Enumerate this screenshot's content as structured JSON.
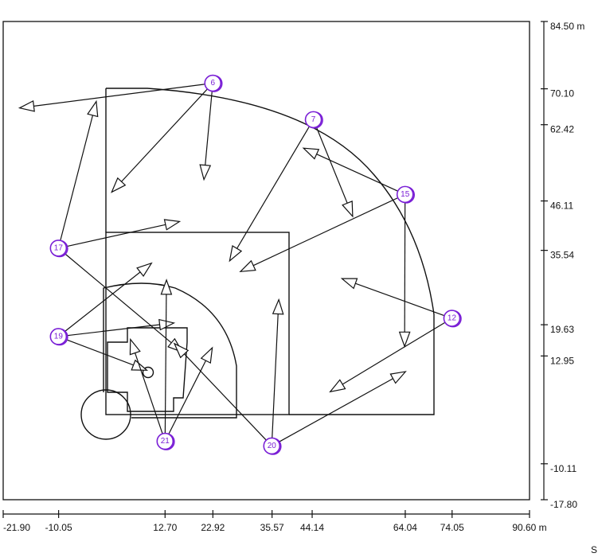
{
  "x_axis": {
    "unit": "m",
    "ticks": [
      {
        "label": "-21.90",
        "value": -21.9
      },
      {
        "label": "-10.05",
        "value": -10.05
      },
      {
        "label": "12.70",
        "value": 12.7
      },
      {
        "label": "22.92",
        "value": 22.92
      },
      {
        "label": "35.57",
        "value": 35.57
      },
      {
        "label": "44.14",
        "value": 44.14
      },
      {
        "label": "64.04",
        "value": 64.04
      },
      {
        "label": "74.05",
        "value": 74.05
      },
      {
        "label": "90.60 m",
        "value": 90.6
      }
    ]
  },
  "y_axis": {
    "unit": "m",
    "ticks": [
      {
        "label": "84.50 m",
        "value": 84.5
      },
      {
        "label": "70.10",
        "value": 70.1
      },
      {
        "label": "62.42",
        "value": 62.42
      },
      {
        "label": "46.11",
        "value": 46.11
      },
      {
        "label": "35.54",
        "value": 35.54
      },
      {
        "label": "19.63",
        "value": 19.63
      },
      {
        "label": "12.95",
        "value": 12.95
      },
      {
        "label": "-10.11",
        "value": -10.11
      },
      {
        "label": "-17.80",
        "value": -17.8
      }
    ]
  },
  "corner_label": "S",
  "players": [
    {
      "id": "6",
      "x": 22.9,
      "y": 71.3
    },
    {
      "id": "7",
      "x": 44.4,
      "y": 63.5
    },
    {
      "id": "15",
      "x": 64.0,
      "y": 47.5
    },
    {
      "id": "17",
      "x": -10.1,
      "y": 36.0
    },
    {
      "id": "19",
      "x": -10.1,
      "y": 17.1
    },
    {
      "id": "12",
      "x": 74.0,
      "y": 21.0
    },
    {
      "id": "21",
      "x": 12.7,
      "y": -5.3
    },
    {
      "id": "20",
      "x": 35.5,
      "y": -6.3
    }
  ],
  "moves": [
    {
      "from": "6",
      "to": [
        -18.4,
        66.0
      ]
    },
    {
      "from": "6",
      "to": [
        21.0,
        50.7
      ]
    },
    {
      "from": "6",
      "to": [
        1.3,
        48.0
      ]
    },
    {
      "from": "7",
      "to": [
        52.8,
        42.8
      ]
    },
    {
      "from": "7",
      "to": [
        26.5,
        33.3
      ]
    },
    {
      "from": "15",
      "to": [
        42.3,
        57.4
      ]
    },
    {
      "from": "15",
      "to": [
        28.8,
        31.0
      ]
    },
    {
      "from": "15",
      "to": [
        63.9,
        15.0
      ]
    },
    {
      "from": "17",
      "to": [
        15.8,
        41.7
      ]
    },
    {
      "from": "17",
      "to": [
        -2.0,
        67.4
      ]
    },
    {
      "from": "17",
      "to": [
        16.4,
        13.8
      ]
    },
    {
      "from": "19",
      "to": [
        9.8,
        32.8
      ]
    },
    {
      "from": "19",
      "to": [
        14.6,
        20.0
      ]
    },
    {
      "from": "19",
      "to": [
        8.8,
        9.9
      ]
    },
    {
      "from": "12",
      "to": [
        50.5,
        29.5
      ]
    },
    {
      "from": "12",
      "to": [
        48.0,
        5.3
      ]
    },
    {
      "from": "21",
      "to": [
        5.3,
        16.5
      ]
    },
    {
      "from": "21",
      "to": [
        13.0,
        29.2
      ]
    },
    {
      "from": "21",
      "to": [
        22.8,
        14.7
      ]
    },
    {
      "from": "20",
      "to": [
        14.7,
        15.6
      ]
    },
    {
      "from": "20",
      "to": [
        37.0,
        25.0
      ]
    },
    {
      "from": "20",
      "to": [
        64.1,
        9.6
      ]
    }
  ],
  "colors": {
    "player": "#7a1fd6",
    "line": "#111111"
  }
}
